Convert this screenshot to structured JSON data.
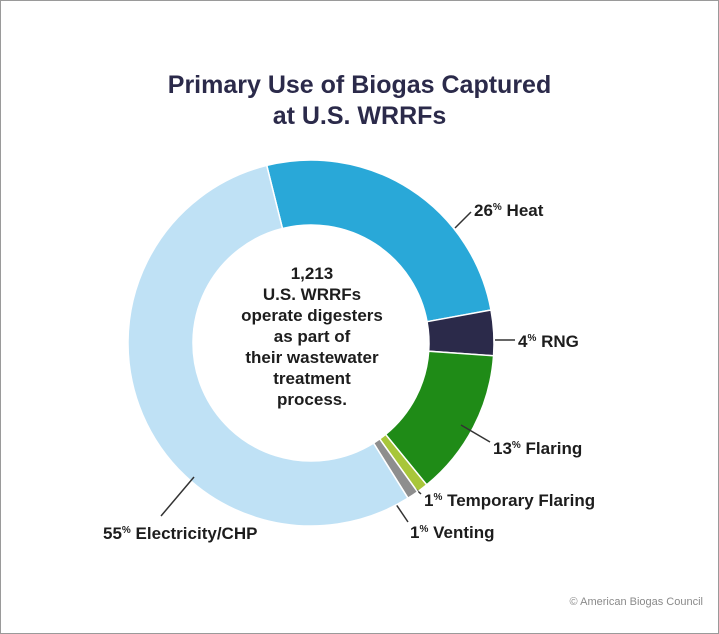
{
  "chart_data": {
    "type": "pie",
    "title_lines": [
      "Primary Use of Biogas Captured",
      "at U.S. WRRFs"
    ],
    "center_text_lines": [
      "1,213",
      "U.S. WRRFs",
      "operate digesters",
      "as part of",
      "their wastewater",
      "treatment",
      "process."
    ],
    "slices": [
      {
        "name": "Heat",
        "value": 26,
        "color": "#29a8d8"
      },
      {
        "name": "RNG",
        "value": 4,
        "color": "#2b2a4a"
      },
      {
        "name": "Flaring",
        "value": 13,
        "color": "#1f8b17"
      },
      {
        "name": "Temporary Flaring",
        "value": 1,
        "color": "#a8c63a"
      },
      {
        "name": "Venting",
        "value": 1,
        "color": "#8e8e8e"
      },
      {
        "name": "Electricity/CHP",
        "value": 55,
        "color": "#bfe1f5"
      }
    ],
    "legend": "callout labels"
  },
  "footer": {
    "credit": "© American Biogas Council"
  }
}
